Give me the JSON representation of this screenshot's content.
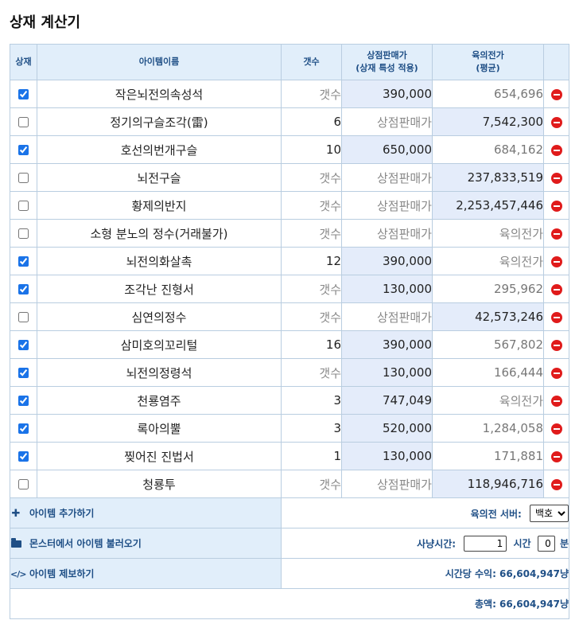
{
  "title": "상재 계산기",
  "headers": {
    "check": "상재",
    "name": "아이템이름",
    "count": "갯수",
    "shop_line1": "상점판매가",
    "shop_line2": "(상재 특성 적용)",
    "est_line1": "육의전가",
    "est_line2": "(평균)"
  },
  "placeholders": {
    "count": "갯수",
    "shop": "상점판매가",
    "est": "육의전가"
  },
  "rows": [
    {
      "checked": true,
      "name": "작은뇌전의속성석",
      "count": "",
      "shop": "390,000",
      "est": "654,696"
    },
    {
      "checked": false,
      "name": "정기의구슬조각(雷)",
      "count": "6",
      "shop": "",
      "est": "7,542,300"
    },
    {
      "checked": true,
      "name": "호선의번개구슬",
      "count": "10",
      "shop": "650,000",
      "est": "684,162"
    },
    {
      "checked": false,
      "name": "뇌전구슬",
      "count": "",
      "shop": "",
      "est": "237,833,519"
    },
    {
      "checked": false,
      "name": "황제의반지",
      "count": "",
      "shop": "",
      "est": "2,253,457,446"
    },
    {
      "checked": false,
      "name": "소형 분노의 정수(거래불가)",
      "count": "",
      "shop": "",
      "est": ""
    },
    {
      "checked": true,
      "name": "뇌전의화살촉",
      "count": "12",
      "shop": "390,000",
      "est": ""
    },
    {
      "checked": true,
      "name": "조각난 진형서",
      "count": "",
      "shop": "130,000",
      "est": "295,962"
    },
    {
      "checked": false,
      "name": "심연의정수",
      "count": "",
      "shop": "",
      "est": "42,573,246"
    },
    {
      "checked": true,
      "name": "삼미호의꼬리털",
      "count": "16",
      "shop": "390,000",
      "est": "567,802"
    },
    {
      "checked": true,
      "name": "뇌전의정령석",
      "count": "",
      "shop": "130,000",
      "est": "166,444"
    },
    {
      "checked": true,
      "name": "천룡염주",
      "count": "3",
      "shop": "747,049",
      "est": ""
    },
    {
      "checked": true,
      "name": "록아의뿔",
      "count": "3",
      "shop": "520,000",
      "est": "1,284,058"
    },
    {
      "checked": true,
      "name": "찢어진 진법서",
      "count": "1",
      "shop": "130,000",
      "est": "171,881"
    },
    {
      "checked": false,
      "name": "청룡투",
      "count": "",
      "shop": "",
      "est": "118,946,716"
    }
  ],
  "actions": {
    "add_item": "아이템 추가하기",
    "load_from_monster": "몬스터에서 아이템 불러오기",
    "report_item": "아이템 제보하기"
  },
  "footer": {
    "server_label": "육의전 서버:",
    "server_value": "백호",
    "hunt_label": "사냥시간:",
    "hours_value": "1",
    "hours_unit": "시간",
    "minutes_value": "0",
    "minutes_unit": "분",
    "hourly_label": "시간당 수익: 66,604,947냥",
    "total_label": "총액: 66,604,947냥"
  },
  "colors": {
    "header_bg": "#e1eefa",
    "header_text": "#1f4f86",
    "highlight_cell": "#e4ecfa",
    "delete_icon": "#e01b1b",
    "border": "#b9cde0"
  }
}
